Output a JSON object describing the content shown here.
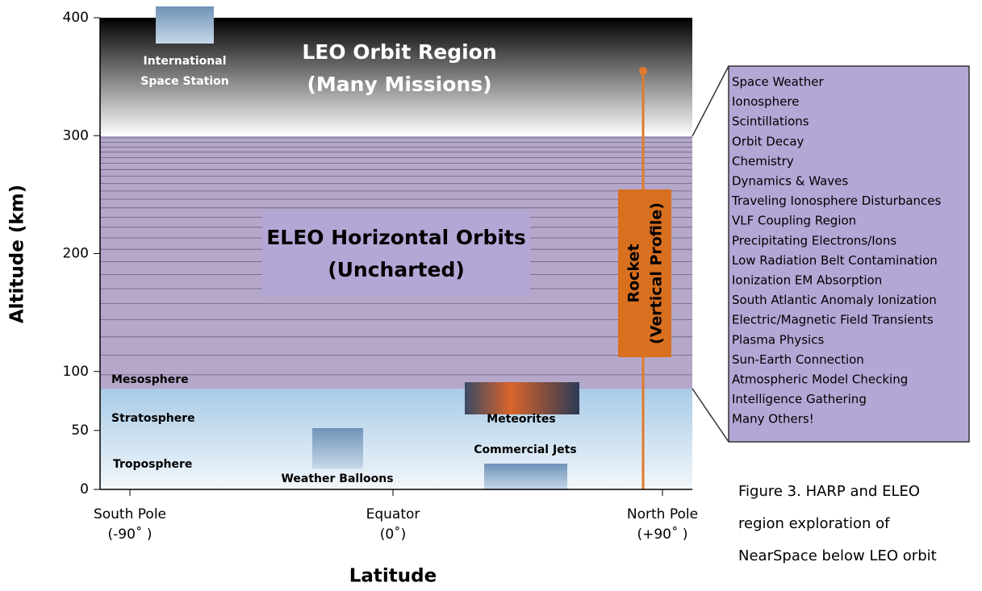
{
  "axes": {
    "y_label": "Altitude (km)",
    "x_label": "Latitude",
    "yticks": [
      0,
      50,
      100,
      200,
      300,
      400
    ],
    "xticks": [
      {
        "line1": "South Pole",
        "line2": "(-90˚ )"
      },
      {
        "line1": "Equator",
        "line2": "(0˚)"
      },
      {
        "line1": "North Pole",
        "line2": "(+90˚ )"
      }
    ]
  },
  "regions": {
    "leo": {
      "line1": "LEO Orbit Region",
      "line2": "(Many Missions)"
    },
    "eleo": {
      "line1": "ELEO Horizontal Orbits",
      "line2": "(Uncharted)"
    },
    "mesosphere": "Mesosphere",
    "stratosphere": "Stratosphere",
    "troposphere": "Troposphere"
  },
  "objects": {
    "iss": {
      "line1": "International",
      "line2": "Space Station"
    },
    "meteorites": "Meteorites",
    "jets": "Commercial Jets",
    "balloons": "Weather Balloons",
    "rocket": {
      "line1": "Rocket",
      "line2": "(Vertical Profile)"
    }
  },
  "topics": [
    "Space Weather",
    "Ionosphere",
    "Scintillations",
    "Orbit Decay",
    "Chemistry",
    "Dynamics & Waves",
    "Traveling Ionosphere Disturbances",
    "VLF Coupling Region",
    "Precipitating Electrons/Ions",
    "Low Radiation Belt Contamination",
    "Ionization EM Absorption",
    "South Atlantic Anomaly Ionization",
    "Electric/Magnetic Field Transients",
    "Plasma Physics",
    "Sun-Earth Connection",
    "Atmospheric Model Checking",
    "Intelligence Gathering",
    "Many Others!"
  ],
  "caption": [
    "Figure 3.  HARP and ELEO",
    "region exploration of",
    "NearSpace below LEO orbit"
  ]
}
